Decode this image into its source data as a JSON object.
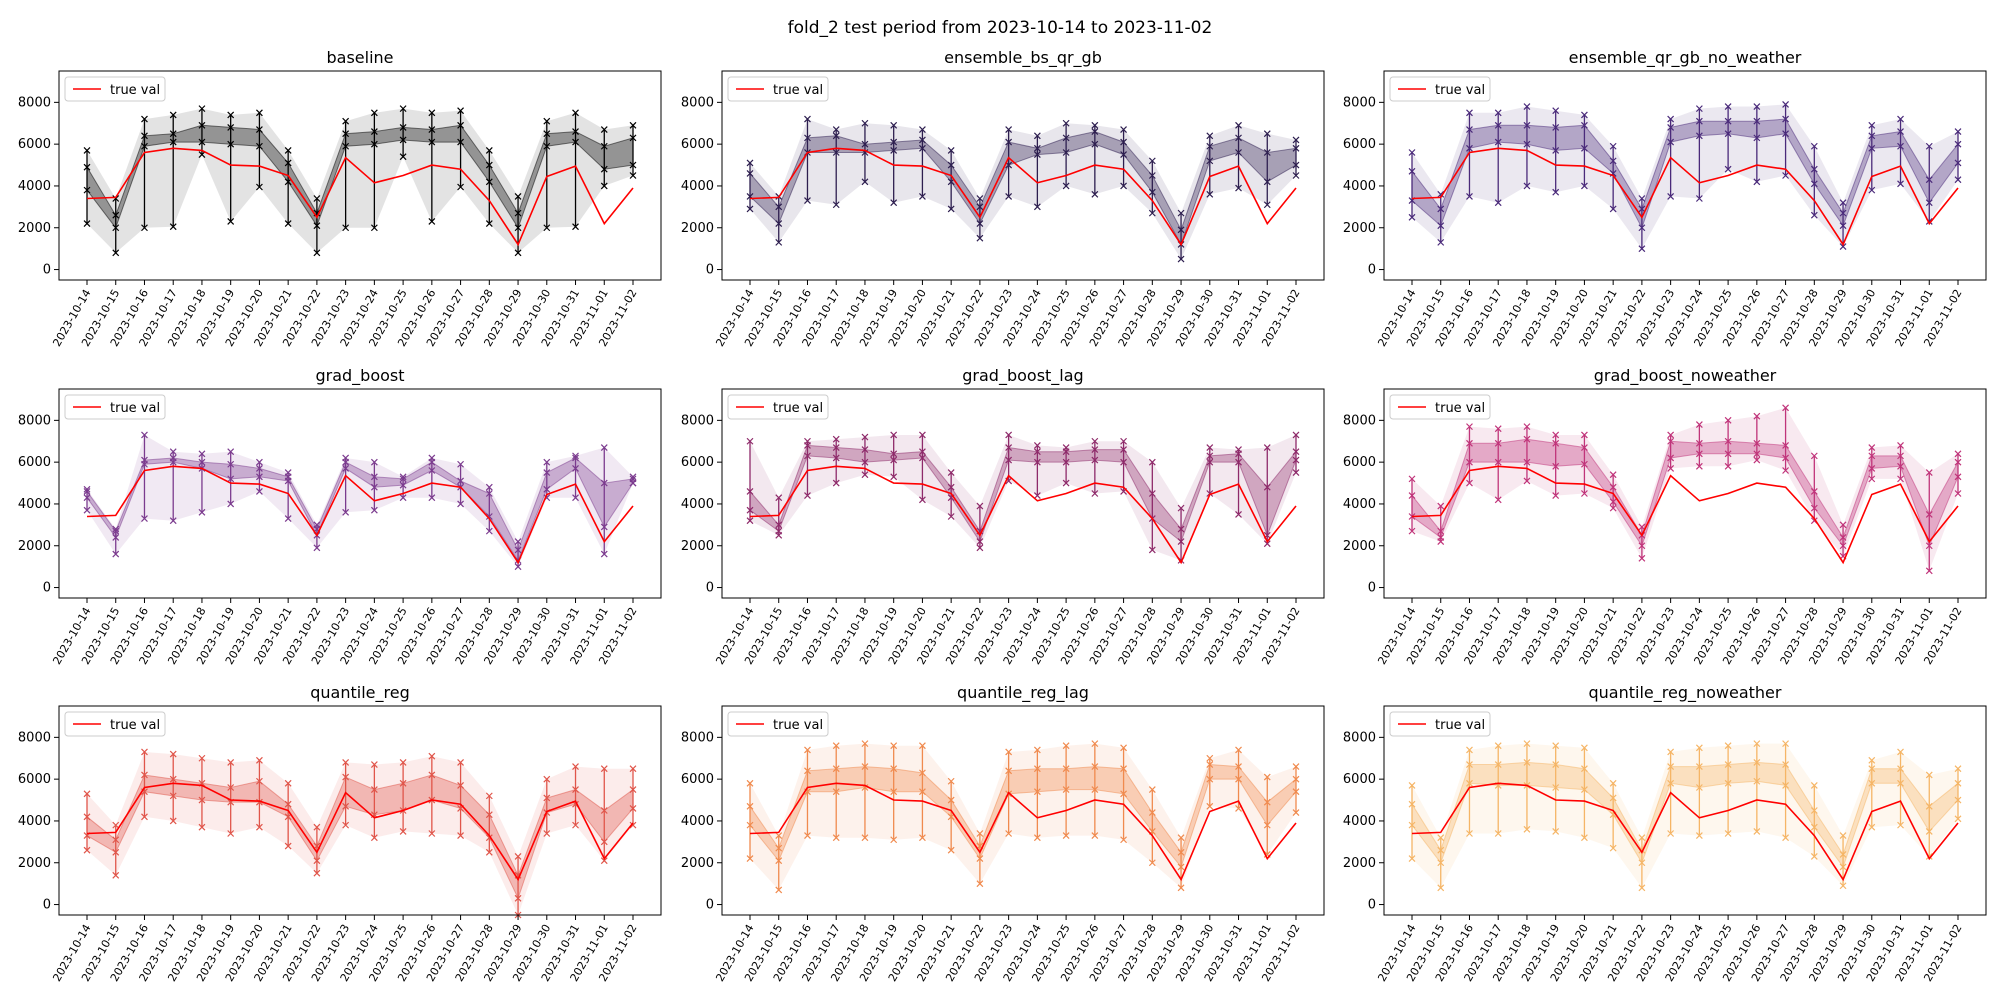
{
  "figure": {
    "suptitle": "fold_2 test period from 2023-10-14 to 2023-11-02",
    "legend_label": "true val"
  },
  "chart_data": {
    "type": "line",
    "ylim": [
      -500,
      9500
    ],
    "yticks": [
      0,
      2000,
      4000,
      6000,
      8000
    ],
    "grid": false,
    "legend_position": "upper-left",
    "dates": [
      "2023-10-14",
      "2023-10-15",
      "2023-10-16",
      "2023-10-17",
      "2023-10-18",
      "2023-10-19",
      "2023-10-20",
      "2023-10-21",
      "2023-10-22",
      "2023-10-23",
      "2023-10-24",
      "2023-10-25",
      "2023-10-26",
      "2023-10-27",
      "2023-10-28",
      "2023-10-29",
      "2023-10-30",
      "2023-10-31",
      "2023-11-01",
      "2023-11-02"
    ],
    "true_val": [
      3400,
      3450,
      5600,
      5800,
      5700,
      5000,
      4950,
      4500,
      2500,
      5350,
      4150,
      4500,
      5000,
      4800,
      3300,
      1200,
      4450,
      4950,
      2200,
      3900
    ],
    "panels": [
      {
        "title": "baseline",
        "color": "#000000",
        "low": [
          2200,
          800,
          2000,
          2050,
          5500,
          2300,
          3950,
          2200,
          800,
          2000,
          2000,
          5400,
          2300,
          3950,
          2200,
          800,
          2000,
          2050,
          4000,
          4500
        ],
        "q25": [
          3800,
          2000,
          5900,
          6100,
          6100,
          6000,
          5900,
          4200,
          2100,
          5900,
          6000,
          6200,
          6100,
          6100,
          4200,
          2000,
          5900,
          6100,
          4800,
          5000
        ],
        "q75": [
          4900,
          2600,
          6400,
          6500,
          6900,
          6800,
          6700,
          5100,
          2700,
          6500,
          6600,
          6800,
          6700,
          6900,
          5000,
          2700,
          6500,
          6600,
          5900,
          6300
        ],
        "high": [
          5700,
          3400,
          7200,
          7400,
          7700,
          7400,
          7500,
          5700,
          3400,
          7100,
          7500,
          7700,
          7500,
          7600,
          5700,
          3500,
          7100,
          7500,
          6700,
          6900
        ]
      },
      {
        "title": "ensemble_bs_qr_gb",
        "color": "#2d1e4f",
        "low": [
          2900,
          1300,
          3300,
          3100,
          4200,
          3200,
          3500,
          2900,
          1500,
          3500,
          3000,
          4000,
          3600,
          4000,
          2700,
          500,
          3600,
          3900,
          3100,
          4500
        ],
        "q25": [
          3500,
          2200,
          5600,
          5600,
          5600,
          5700,
          5800,
          4200,
          2200,
          5000,
          5500,
          5600,
          6000,
          5500,
          3700,
          1200,
          5200,
          5600,
          4200,
          5000
        ],
        "q75": [
          4600,
          3000,
          6300,
          6400,
          6000,
          6100,
          6200,
          5000,
          3000,
          6100,
          5800,
          6300,
          6600,
          6100,
          4500,
          1900,
          5900,
          6300,
          5600,
          5800
        ],
        "high": [
          5100,
          3500,
          7200,
          6700,
          7000,
          6900,
          6700,
          5700,
          3400,
          6700,
          6400,
          7000,
          6900,
          6700,
          5200,
          2700,
          6400,
          6900,
          6500,
          6200
        ]
      },
      {
        "title": "ensemble_qr_gb_no_weather",
        "color": "#4a2a7a",
        "low": [
          2500,
          1300,
          3500,
          3200,
          4000,
          3700,
          4000,
          2900,
          1000,
          3500,
          3400,
          4800,
          4200,
          4500,
          2600,
          1100,
          3800,
          4100,
          2300,
          4300
        ],
        "q25": [
          3300,
          2100,
          5800,
          6100,
          6000,
          5700,
          5800,
          4600,
          2000,
          6100,
          6400,
          6500,
          6300,
          6500,
          4100,
          2100,
          5800,
          5900,
          3200,
          5100
        ],
        "q75": [
          4700,
          2900,
          6700,
          6900,
          6900,
          6800,
          6900,
          5200,
          2900,
          6800,
          7100,
          7100,
          7100,
          7200,
          4800,
          2700,
          6400,
          6600,
          4300,
          6000
        ],
        "high": [
          5600,
          3600,
          7500,
          7500,
          7800,
          7600,
          7400,
          5900,
          3400,
          7200,
          7700,
          7800,
          7800,
          7900,
          5900,
          3200,
          6900,
          7200,
          5900,
          6600
        ]
      },
      {
        "title": "grad_boost",
        "color": "#7b3b8e",
        "low": [
          3700,
          1600,
          3300,
          3200,
          3600,
          4000,
          4600,
          3300,
          1900,
          3600,
          3700,
          4300,
          4300,
          4000,
          2700,
          1000,
          4300,
          4300,
          1600,
          5000
        ],
        "q25": [
          4300,
          2400,
          5900,
          6000,
          5700,
          5200,
          5300,
          5100,
          2500,
          5700,
          4800,
          4900,
          5600,
          4800,
          3400,
          1300,
          4700,
          5700,
          2900,
          5000
        ],
        "q75": [
          4600,
          2700,
          6100,
          6200,
          6000,
          5900,
          5700,
          5300,
          2800,
          6000,
          5300,
          5200,
          6000,
          5100,
          4500,
          1800,
          5500,
          6200,
          5000,
          5200
        ],
        "high": [
          4700,
          2800,
          7300,
          6500,
          6400,
          6500,
          6000,
          5500,
          3000,
          6200,
          6000,
          5300,
          6200,
          5900,
          4800,
          2200,
          6000,
          6300,
          6700,
          5300
        ]
      },
      {
        "title": "grad_boost_lag",
        "color": "#8e2a6a",
        "low": [
          3200,
          2500,
          4400,
          5000,
          5400,
          5300,
          4200,
          3400,
          1900,
          5100,
          4400,
          5000,
          4500,
          4600,
          1800,
          1300,
          4500,
          3500,
          2100,
          5500
        ],
        "q25": [
          3700,
          2700,
          6300,
          6200,
          6000,
          6100,
          6200,
          4300,
          2200,
          6100,
          6000,
          6000,
          6100,
          6000,
          3300,
          2200,
          6000,
          6000,
          2500,
          6100
        ],
        "q75": [
          4600,
          3000,
          6800,
          6700,
          6600,
          6400,
          6500,
          4800,
          2700,
          6700,
          6500,
          6500,
          6600,
          6600,
          4500,
          2800,
          6300,
          6400,
          4800,
          6500
        ],
        "high": [
          7000,
          4300,
          7000,
          7100,
          7200,
          7300,
          7300,
          5500,
          3900,
          7300,
          6800,
          6700,
          7000,
          7000,
          6000,
          3800,
          6700,
          6600,
          6700,
          7300
        ]
      },
      {
        "title": "grad_boost_noweather",
        "color": "#c0347a",
        "low": [
          2700,
          2200,
          5000,
          4200,
          5100,
          4400,
          4500,
          3800,
          1400,
          5700,
          5800,
          5800,
          6100,
          5600,
          3200,
          1500,
          5200,
          5200,
          800,
          4500
        ],
        "q25": [
          3400,
          2400,
          6000,
          6000,
          6000,
          5800,
          5900,
          4100,
          2000,
          6200,
          6400,
          6400,
          6400,
          6200,
          3800,
          2000,
          5700,
          5800,
          2000,
          5300
        ],
        "q75": [
          4400,
          2700,
          6900,
          6900,
          7100,
          6900,
          6700,
          4800,
          2500,
          7000,
          6900,
          7000,
          6900,
          6800,
          4600,
          2400,
          6300,
          6300,
          3500,
          6000
        ],
        "high": [
          5200,
          3900,
          7700,
          7600,
          7700,
          7300,
          7300,
          5400,
          2900,
          7300,
          7800,
          8000,
          8200,
          8600,
          6300,
          3000,
          6700,
          6800,
          5500,
          6400
        ]
      },
      {
        "title": "quantile_reg",
        "color": "#e0554a",
        "low": [
          2600,
          1400,
          4200,
          4000,
          3700,
          3400,
          3700,
          2800,
          1500,
          3800,
          3200,
          3500,
          3400,
          3300,
          2500,
          -500,
          3400,
          3800,
          2100,
          3800
        ],
        "q25": [
          3300,
          2500,
          5400,
          5200,
          5000,
          4900,
          4900,
          4200,
          2100,
          4700,
          4300,
          4500,
          5000,
          4600,
          3200,
          300,
          4400,
          4800,
          3000,
          4600
        ],
        "q75": [
          4200,
          3100,
          6200,
          6000,
          5800,
          5600,
          5900,
          4800,
          2800,
          6100,
          5500,
          5800,
          6200,
          5700,
          4300,
          1400,
          5100,
          5500,
          4500,
          5500
        ],
        "high": [
          5300,
          3800,
          7300,
          7200,
          7000,
          6800,
          6900,
          5800,
          3700,
          6800,
          6700,
          6800,
          7100,
          6800,
          5200,
          2300,
          6000,
          6600,
          6500,
          6500
        ]
      },
      {
        "title": "quantile_reg_lag",
        "color": "#f08a4e",
        "low": [
          2200,
          700,
          3300,
          3200,
          3200,
          3100,
          3200,
          2600,
          1000,
          3400,
          3200,
          3300,
          3300,
          3100,
          2000,
          800,
          4700,
          4600,
          2400,
          4400
        ],
        "q25": [
          3800,
          2100,
          5400,
          5400,
          5600,
          5400,
          5400,
          4200,
          2200,
          5300,
          5400,
          5500,
          5500,
          5300,
          3500,
          1800,
          6000,
          6000,
          3800,
          5400
        ],
        "q75": [
          4700,
          2700,
          6400,
          6500,
          6600,
          6500,
          6300,
          5000,
          2800,
          6400,
          6500,
          6500,
          6600,
          6500,
          4400,
          2500,
          6700,
          6600,
          4900,
          6000
        ],
        "high": [
          5800,
          3300,
          7400,
          7600,
          7700,
          7600,
          7600,
          5900,
          3400,
          7300,
          7400,
          7600,
          7700,
          7500,
          5500,
          3200,
          7000,
          7400,
          6100,
          6600
        ]
      },
      {
        "title": "quantile_reg_noweather",
        "color": "#f5b566",
        "low": [
          2200,
          800,
          3400,
          3400,
          3600,
          3500,
          3200,
          2700,
          800,
          3400,
          3300,
          3400,
          3500,
          3200,
          2300,
          900,
          3700,
          3800,
          2300,
          4100
        ],
        "q25": [
          3800,
          2000,
          5800,
          5700,
          5700,
          5600,
          5500,
          4300,
          2000,
          5800,
          5600,
          5800,
          5900,
          5700,
          3700,
          1800,
          5800,
          5800,
          3500,
          5000
        ],
        "q75": [
          4800,
          2600,
          6700,
          6700,
          6800,
          6700,
          6500,
          5100,
          2600,
          6600,
          6600,
          6700,
          6800,
          6700,
          4500,
          2400,
          6500,
          6500,
          4700,
          5800
        ],
        "high": [
          5700,
          3200,
          7400,
          7600,
          7700,
          7600,
          7500,
          5800,
          3200,
          7300,
          7500,
          7600,
          7700,
          7700,
          5700,
          3300,
          6900,
          7300,
          6200,
          6500
        ]
      }
    ]
  }
}
